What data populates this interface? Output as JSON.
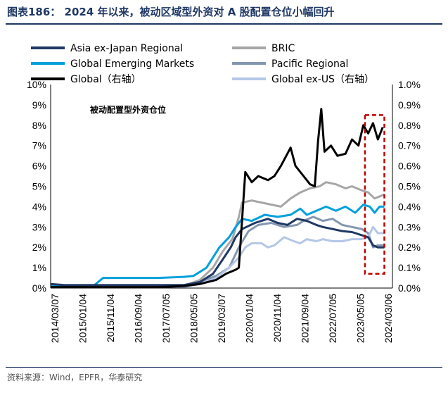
{
  "page": {
    "title": "图表186： 2024 年以来，被动区域型外资对 A 股配置仓位小幅回升",
    "source": "资料来源：Wind，EPFR，华泰研究"
  },
  "chart_data": {
    "type": "line",
    "annotation": "被动配置型外资仓位",
    "x_ticks": [
      "2014/03/07",
      "2015/01/04",
      "2015/11/04",
      "2016/09/04",
      "2017/07/05",
      "2018/05/05",
      "2019/03/07",
      "2020/01/04",
      "2020/11/04",
      "2021/09/04",
      "2022/07/05",
      "2023/05/05",
      "2024/03/06"
    ],
    "x_range": [
      2014.18,
      2024.75
    ],
    "y_left": {
      "min": 0,
      "max": 10,
      "step": 1,
      "unit": "%",
      "tick_labels": [
        "0%",
        "1%",
        "2%",
        "3%",
        "4%",
        "5%",
        "6%",
        "7%",
        "8%",
        "9%",
        "10%"
      ]
    },
    "y_right": {
      "min": 0,
      "max": 1.0,
      "step": 0.1,
      "unit": "%",
      "tick_labels": [
        "0.0%",
        "0.1%",
        "0.2%",
        "0.3%",
        "0.4%",
        "0.5%",
        "0.6%",
        "0.7%",
        "0.8%",
        "0.9%",
        "1.0%"
      ]
    },
    "legend_placement": "top",
    "highlight_box": {
      "x_start": 2023.9,
      "x_end": 2024.5,
      "y_start": 0.7,
      "y_end": 8.5,
      "color": "#c00000"
    },
    "series": [
      {
        "name": "Asia ex-Japan Regional",
        "axis": "left",
        "color": "#1f3864",
        "width": 3,
        "points": [
          [
            2014.18,
            0.2
          ],
          [
            2014.6,
            0.15
          ],
          [
            2015.5,
            0.15
          ],
          [
            2016.5,
            0.15
          ],
          [
            2017.5,
            0.15
          ],
          [
            2018.3,
            0.15
          ],
          [
            2018.8,
            0.3
          ],
          [
            2019.2,
            0.7
          ],
          [
            2019.5,
            1.4
          ],
          [
            2019.75,
            2.0
          ],
          [
            2019.9,
            2.5
          ],
          [
            2020.1,
            2.9
          ],
          [
            2020.5,
            3.2
          ],
          [
            2020.9,
            3.4
          ],
          [
            2021.2,
            3.2
          ],
          [
            2021.5,
            3.1
          ],
          [
            2021.8,
            3.4
          ],
          [
            2022.1,
            3.3
          ],
          [
            2022.4,
            3.1
          ],
          [
            2022.6,
            3.0
          ],
          [
            2022.9,
            2.9
          ],
          [
            2023.2,
            2.8
          ],
          [
            2023.5,
            2.75
          ],
          [
            2023.8,
            2.6
          ],
          [
            2024.0,
            2.5
          ],
          [
            2024.15,
            2.1
          ],
          [
            2024.3,
            2.0
          ],
          [
            2024.5,
            2.0
          ]
        ]
      },
      {
        "name": "BRIC",
        "axis": "left",
        "color": "#a6a6a6",
        "width": 3,
        "points": [
          [
            2014.18,
            0.15
          ],
          [
            2015.5,
            0.1
          ],
          [
            2016.5,
            0.1
          ],
          [
            2017.5,
            0.1
          ],
          [
            2018.3,
            0.1
          ],
          [
            2018.8,
            0.4
          ],
          [
            2019.2,
            1.0
          ],
          [
            2019.5,
            1.8
          ],
          [
            2019.8,
            2.4
          ],
          [
            2020.0,
            3.5
          ],
          [
            2020.1,
            4.2
          ],
          [
            2020.4,
            4.3
          ],
          [
            2020.7,
            4.2
          ],
          [
            2021.0,
            4.1
          ],
          [
            2021.3,
            4.0
          ],
          [
            2021.6,
            4.4
          ],
          [
            2021.9,
            4.7
          ],
          [
            2022.2,
            4.9
          ],
          [
            2022.5,
            5.0
          ],
          [
            2022.7,
            5.2
          ],
          [
            2023.0,
            5.1
          ],
          [
            2023.3,
            4.9
          ],
          [
            2023.5,
            5.0
          ],
          [
            2023.8,
            4.8
          ],
          [
            2024.0,
            4.7
          ],
          [
            2024.2,
            4.4
          ],
          [
            2024.5,
            4.6
          ]
        ]
      },
      {
        "name": "Global Emerging Markets",
        "axis": "left",
        "color": "#00a0dc",
        "width": 3,
        "points": [
          [
            2014.18,
            0.15
          ],
          [
            2014.6,
            0.1
          ],
          [
            2015.5,
            0.1
          ],
          [
            2015.8,
            0.5
          ],
          [
            2016.5,
            0.5
          ],
          [
            2017.5,
            0.5
          ],
          [
            2018.3,
            0.55
          ],
          [
            2018.6,
            0.6
          ],
          [
            2019.0,
            1.0
          ],
          [
            2019.4,
            2.0
          ],
          [
            2019.7,
            2.5
          ],
          [
            2019.9,
            3.0
          ],
          [
            2020.1,
            3.4
          ],
          [
            2020.4,
            3.3
          ],
          [
            2020.8,
            3.6
          ],
          [
            2021.2,
            3.5
          ],
          [
            2021.6,
            3.6
          ],
          [
            2021.9,
            3.9
          ],
          [
            2022.1,
            3.6
          ],
          [
            2022.4,
            3.8
          ],
          [
            2022.7,
            4.0
          ],
          [
            2023.0,
            3.8
          ],
          [
            2023.3,
            4.0
          ],
          [
            2023.6,
            3.7
          ],
          [
            2023.85,
            4.1
          ],
          [
            2024.05,
            4.0
          ],
          [
            2024.2,
            3.7
          ],
          [
            2024.35,
            4.0
          ],
          [
            2024.5,
            4.0
          ]
        ]
      },
      {
        "name": "Pacific Regional",
        "axis": "left",
        "color": "#8497b0",
        "width": 3,
        "points": [
          [
            2014.18,
            0.1
          ],
          [
            2015.5,
            0.1
          ],
          [
            2016.5,
            0.1
          ],
          [
            2017.5,
            0.1
          ],
          [
            2018.3,
            0.1
          ],
          [
            2018.8,
            0.3
          ],
          [
            2019.3,
            0.6
          ],
          [
            2019.7,
            1.0
          ],
          [
            2020.0,
            2.0
          ],
          [
            2020.3,
            2.8
          ],
          [
            2020.6,
            3.1
          ],
          [
            2021.0,
            3.2
          ],
          [
            2021.4,
            3.0
          ],
          [
            2021.8,
            3.1
          ],
          [
            2022.0,
            3.3
          ],
          [
            2022.3,
            3.5
          ],
          [
            2022.6,
            3.3
          ],
          [
            2022.9,
            3.4
          ],
          [
            2023.2,
            3.1
          ],
          [
            2023.5,
            3.0
          ],
          [
            2023.8,
            2.9
          ],
          [
            2024.0,
            2.7
          ],
          [
            2024.15,
            2.0
          ],
          [
            2024.3,
            2.1
          ],
          [
            2024.5,
            2.1
          ]
        ]
      },
      {
        "name": "Global（右轴）",
        "axis": "right",
        "color": "#000000",
        "width": 3,
        "points": [
          [
            2014.18,
            0.005
          ],
          [
            2015.5,
            0.005
          ],
          [
            2016.5,
            0.005
          ],
          [
            2017.5,
            0.005
          ],
          [
            2018.3,
            0.01
          ],
          [
            2018.8,
            0.02
          ],
          [
            2019.3,
            0.04
          ],
          [
            2019.6,
            0.07
          ],
          [
            2019.9,
            0.09
          ],
          [
            2020.0,
            0.1
          ],
          [
            2020.2,
            0.57
          ],
          [
            2020.4,
            0.52
          ],
          [
            2020.6,
            0.55
          ],
          [
            2020.9,
            0.53
          ],
          [
            2021.1,
            0.55
          ],
          [
            2021.3,
            0.6
          ],
          [
            2021.5,
            0.66
          ],
          [
            2021.6,
            0.69
          ],
          [
            2021.75,
            0.6
          ],
          [
            2022.0,
            0.55
          ],
          [
            2022.2,
            0.51
          ],
          [
            2022.35,
            0.5
          ],
          [
            2022.45,
            0.72
          ],
          [
            2022.55,
            0.88
          ],
          [
            2022.65,
            0.67
          ],
          [
            2022.85,
            0.7
          ],
          [
            2023.05,
            0.65
          ],
          [
            2023.3,
            0.66
          ],
          [
            2023.5,
            0.73
          ],
          [
            2023.7,
            0.7
          ],
          [
            2023.85,
            0.8
          ],
          [
            2024.0,
            0.76
          ],
          [
            2024.15,
            0.81
          ],
          [
            2024.3,
            0.73
          ],
          [
            2024.45,
            0.79
          ]
        ]
      },
      {
        "name": "Global ex-US（右轴）",
        "axis": "right",
        "color": "#b4c7e7",
        "width": 3,
        "points": [
          [
            2014.18,
            0.005
          ],
          [
            2015.5,
            0.005
          ],
          [
            2016.5,
            0.005
          ],
          [
            2017.5,
            0.005
          ],
          [
            2018.3,
            0.005
          ],
          [
            2018.8,
            0.02
          ],
          [
            2019.3,
            0.05
          ],
          [
            2019.7,
            0.1
          ],
          [
            2020.0,
            0.15
          ],
          [
            2020.2,
            0.2
          ],
          [
            2020.4,
            0.22
          ],
          [
            2020.7,
            0.22
          ],
          [
            2020.9,
            0.2
          ],
          [
            2021.1,
            0.21
          ],
          [
            2021.4,
            0.25
          ],
          [
            2021.7,
            0.23
          ],
          [
            2021.9,
            0.22
          ],
          [
            2022.1,
            0.24
          ],
          [
            2022.4,
            0.23
          ],
          [
            2022.6,
            0.24
          ],
          [
            2022.9,
            0.23
          ],
          [
            2023.2,
            0.23
          ],
          [
            2023.5,
            0.24
          ],
          [
            2023.8,
            0.24
          ],
          [
            2024.0,
            0.25
          ],
          [
            2024.15,
            0.3
          ],
          [
            2024.3,
            0.27
          ],
          [
            2024.5,
            0.27
          ]
        ]
      }
    ]
  }
}
